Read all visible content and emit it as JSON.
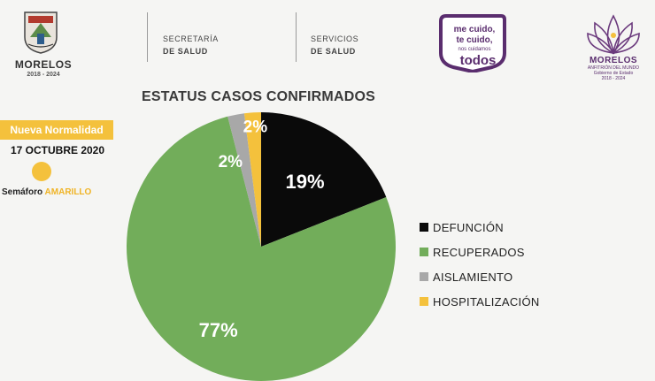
{
  "header": {
    "state_name": "MORELOS",
    "state_years": "2018 - 2024",
    "dept1_line1": "SECRETARÍA",
    "dept1_line2": "DE SALUD",
    "dept2_line1": "SERVICIOS",
    "dept2_line2": "DE SALUD",
    "campaign_line1": "me cuido,",
    "campaign_line2": "te cuido,",
    "campaign_line3": "nos cuidamos",
    "campaign_line4": "todos",
    "lotus_name": "MORELOS",
    "lotus_subtitle": "ANFITRIÓN DEL MUNDO",
    "lotus_gov": "Gobierno de Estado",
    "lotus_years": "2018 - 2024"
  },
  "status": {
    "tag": "Nueva Normalidad",
    "date": "17 OCTUBRE 2020",
    "semaforo_label": "Semáforo",
    "semaforo_value": "AMARILLO"
  },
  "colors": {
    "purple": "#5a2d6e",
    "yellow": "#f4c13c"
  },
  "chart_data": {
    "type": "pie",
    "title": "ESTATUS CASOS CONFIRMADOS",
    "slices": [
      {
        "label": "DEFUNCIÓN",
        "value": 19,
        "display": "19%",
        "color": "#0a0a0a",
        "label_color": "#ffffff"
      },
      {
        "label": "RECUPERADOS",
        "value": 77,
        "display": "77%",
        "color": "#72ad5a",
        "label_color": "#ffffff"
      },
      {
        "label": "AISLAMIENTO",
        "value": 2,
        "display": "2%",
        "color": "#a8a8a8",
        "label_color": "#ffffff"
      },
      {
        "label": "HOSPITALIZACIÓN",
        "value": 2,
        "display": "2%",
        "color": "#f4c13c",
        "label_color": "#ffffff"
      }
    ],
    "legend_position": "right"
  }
}
